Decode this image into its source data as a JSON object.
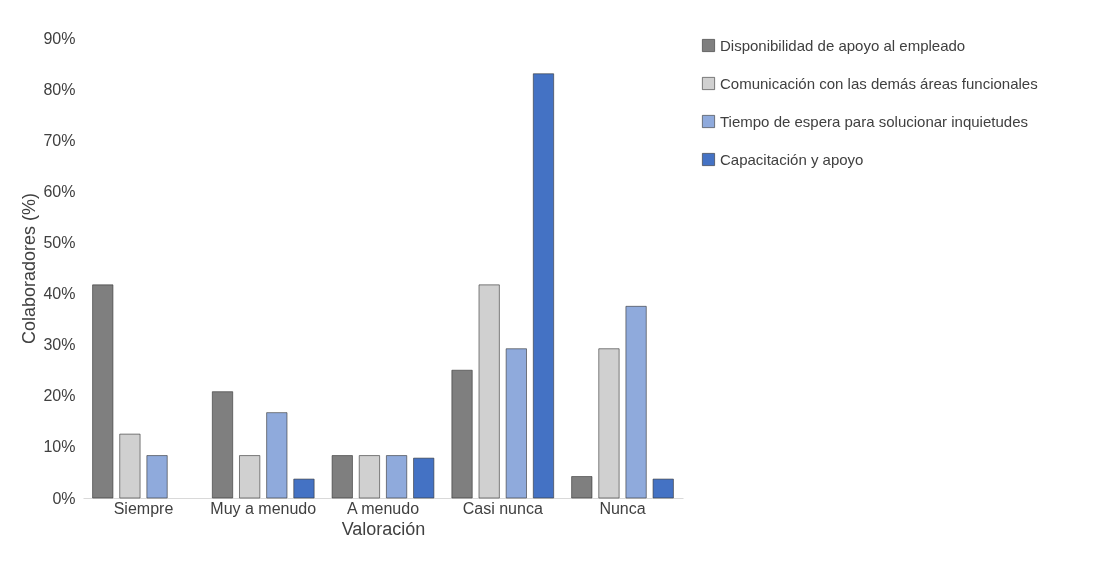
{
  "chart_data": {
    "type": "bar",
    "xlabel": "Valoración",
    "ylabel": "Colaboradores (%)",
    "categories": [
      "Siempre",
      "Muy a menudo",
      "A menudo",
      "Casi nunca",
      "Nunca"
    ],
    "series": [
      {
        "name": "Disponibilidad de apoyo al empleado",
        "color": "#7f7f7f",
        "values": [
          41.7,
          20.8,
          8.3,
          25,
          4.2
        ]
      },
      {
        "name": "Comunicación con las demás áreas funcionales",
        "color": "#d0d0d0",
        "values": [
          12.5,
          8.3,
          8.3,
          41.7,
          29.2
        ]
      },
      {
        "name": "Tiempo de espera para solucionar inquietudes",
        "color": "#8faadc",
        "values": [
          8.3,
          16.7,
          8.3,
          29.2,
          37.5
        ]
      },
      {
        "name": "Capacitación y apoyo",
        "color": "#4472c4",
        "values": [
          null,
          3.7,
          7.8,
          83,
          3.7
        ]
      }
    ],
    "ylim": [
      0,
      90
    ],
    "yticks": [
      {
        "value": 0,
        "label": "0%"
      },
      {
        "value": 10,
        "label": "10%"
      },
      {
        "value": 20,
        "label": "20%"
      },
      {
        "value": 30,
        "label": "30%"
      },
      {
        "value": 40,
        "label": "40%"
      },
      {
        "value": 50,
        "label": "50%"
      },
      {
        "value": 60,
        "label": "60%"
      },
      {
        "value": 70,
        "label": "70%"
      },
      {
        "value": 80,
        "label": "80%"
      },
      {
        "value": 90,
        "label": "90%"
      }
    ],
    "grid": false,
    "legend": "right"
  }
}
